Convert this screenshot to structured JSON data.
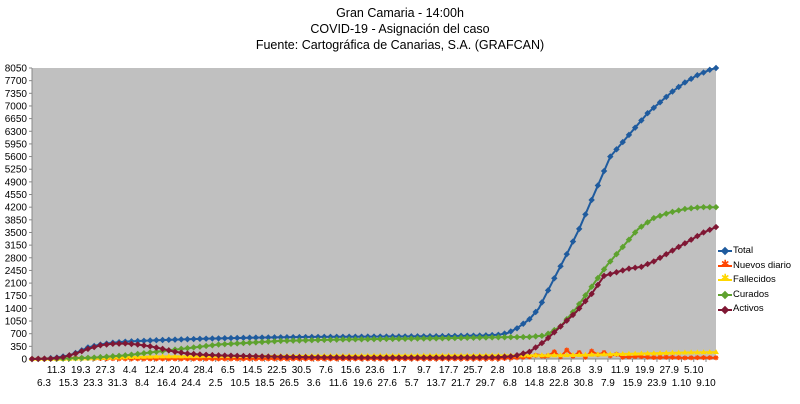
{
  "chart_data": {
    "type": "line",
    "title": "Gran Camaria - 14:00h",
    "subtitle_1": "COVID-19 - Asignación del caso",
    "subtitle_2": "Fuente: Cartográfica de Canarias, S.A. (GRAFCAN)",
    "xlabel": "",
    "ylabel": "",
    "ylim": [
      0,
      8050
    ],
    "y_ticks": [
      0,
      350,
      700,
      1050,
      1400,
      1750,
      2100,
      2450,
      2800,
      3150,
      3500,
      3850,
      4200,
      4550,
      4900,
      5250,
      5600,
      5950,
      6300,
      6650,
      7000,
      7350,
      7700,
      8050
    ],
    "x_labels_top": [
      "11.3",
      "19.3",
      "27.3",
      "4.4",
      "12.4",
      "20.4",
      "28.4",
      "6.5",
      "14.5",
      "22.5",
      "30.5",
      "7.6",
      "15.6",
      "23.6",
      "1.7",
      "9.7",
      "17.7",
      "25.7",
      "2.8",
      "10.8",
      "18.8",
      "26.8",
      "3.9",
      "11.9",
      "19.9",
      "27.9",
      "5.10"
    ],
    "x_labels_bottom": [
      "6.3",
      "15.3",
      "23.3",
      "31.3",
      "8.4",
      "16.4",
      "24.4",
      "2.5",
      "10.5",
      "18.5",
      "26.5",
      "3.6",
      "11.6",
      "19.6",
      "27.6",
      "5.7",
      "13.7",
      "21.7",
      "29.7",
      "6.8",
      "14.8",
      "22.8",
      "30.8",
      "7.9",
      "15.9",
      "23.9",
      "1.10",
      "9.10"
    ],
    "plot_background": "#c0c0c0",
    "grid": false,
    "legend_position": "right",
    "x_day_range": [
      0,
      220
    ],
    "series": [
      {
        "name": "Total",
        "color": "#1f5b9e",
        "marker": "diamond",
        "points": [
          [
            0,
            0
          ],
          [
            4,
            10
          ],
          [
            8,
            40
          ],
          [
            12,
            100
          ],
          [
            15,
            200
          ],
          [
            18,
            320
          ],
          [
            22,
            400
          ],
          [
            26,
            450
          ],
          [
            30,
            480
          ],
          [
            40,
            520
          ],
          [
            55,
            560
          ],
          [
            70,
            590
          ],
          [
            90,
            610
          ],
          [
            110,
            620
          ],
          [
            130,
            630
          ],
          [
            145,
            650
          ],
          [
            150,
            670
          ],
          [
            153,
            720
          ],
          [
            156,
            850
          ],
          [
            160,
            1100
          ],
          [
            163,
            1400
          ],
          [
            166,
            1900
          ],
          [
            169,
            2400
          ],
          [
            172,
            2900
          ],
          [
            176,
            3600
          ],
          [
            180,
            4400
          ],
          [
            183,
            5000
          ],
          [
            186,
            5600
          ],
          [
            190,
            6000
          ],
          [
            194,
            6400
          ],
          [
            198,
            6800
          ],
          [
            202,
            7100
          ],
          [
            206,
            7400
          ],
          [
            210,
            7650
          ],
          [
            214,
            7850
          ],
          [
            218,
            8000
          ],
          [
            220,
            8050
          ]
        ]
      },
      {
        "name": "Nuevos diario",
        "color": "#ff4500",
        "marker": "star",
        "points": [
          [
            0,
            0
          ],
          [
            10,
            10
          ],
          [
            14,
            30
          ],
          [
            20,
            15
          ],
          [
            30,
            5
          ],
          [
            60,
            3
          ],
          [
            100,
            2
          ],
          [
            150,
            5
          ],
          [
            155,
            30
          ],
          [
            160,
            60
          ],
          [
            163,
            120
          ],
          [
            165,
            40
          ],
          [
            168,
            200
          ],
          [
            170,
            60
          ],
          [
            172,
            250
          ],
          [
            174,
            80
          ],
          [
            176,
            180
          ],
          [
            178,
            50
          ],
          [
            180,
            220
          ],
          [
            182,
            120
          ],
          [
            184,
            180
          ],
          [
            186,
            90
          ],
          [
            188,
            130
          ],
          [
            190,
            50
          ],
          [
            195,
            70
          ],
          [
            200,
            40
          ],
          [
            205,
            50
          ],
          [
            210,
            30
          ],
          [
            215,
            40
          ],
          [
            220,
            35
          ]
        ]
      },
      {
        "name": "Fallecidos",
        "color": "#ffd700",
        "marker": "triangle",
        "points": [
          [
            0,
            0
          ],
          [
            10,
            5
          ],
          [
            20,
            20
          ],
          [
            30,
            50
          ],
          [
            40,
            70
          ],
          [
            60,
            80
          ],
          [
            100,
            90
          ],
          [
            150,
            100
          ],
          [
            170,
            105
          ],
          [
            180,
            120
          ],
          [
            190,
            140
          ],
          [
            200,
            160
          ],
          [
            210,
            180
          ],
          [
            220,
            190
          ]
        ]
      },
      {
        "name": "Curados",
        "color": "#5ea22e",
        "marker": "diamond",
        "points": [
          [
            0,
            0
          ],
          [
            10,
            10
          ],
          [
            20,
            40
          ],
          [
            30,
            100
          ],
          [
            40,
            200
          ],
          [
            50,
            300
          ],
          [
            60,
            400
          ],
          [
            70,
            450
          ],
          [
            80,
            500
          ],
          [
            100,
            540
          ],
          [
            130,
            570
          ],
          [
            150,
            600
          ],
          [
            160,
            610
          ],
          [
            165,
            650
          ],
          [
            170,
            900
          ],
          [
            175,
            1400
          ],
          [
            180,
            2000
          ],
          [
            185,
            2600
          ],
          [
            190,
            3100
          ],
          [
            195,
            3600
          ],
          [
            200,
            3900
          ],
          [
            205,
            4050
          ],
          [
            210,
            4150
          ],
          [
            215,
            4200
          ],
          [
            220,
            4200
          ]
        ]
      },
      {
        "name": "Activos",
        "color": "#7f1734",
        "marker": "diamond",
        "points": [
          [
            0,
            0
          ],
          [
            6,
            10
          ],
          [
            10,
            50
          ],
          [
            14,
            150
          ],
          [
            18,
            280
          ],
          [
            22,
            380
          ],
          [
            26,
            420
          ],
          [
            30,
            430
          ],
          [
            34,
            400
          ],
          [
            38,
            350
          ],
          [
            42,
            280
          ],
          [
            46,
            200
          ],
          [
            50,
            150
          ],
          [
            55,
            120
          ],
          [
            60,
            100
          ],
          [
            70,
            80
          ],
          [
            80,
            60
          ],
          [
            90,
            50
          ],
          [
            110,
            40
          ],
          [
            130,
            40
          ],
          [
            150,
            50
          ],
          [
            155,
            80
          ],
          [
            160,
            200
          ],
          [
            165,
            500
          ],
          [
            170,
            900
          ],
          [
            175,
            1300
          ],
          [
            180,
            1800
          ],
          [
            184,
            2300
          ],
          [
            188,
            2400
          ],
          [
            192,
            2500
          ],
          [
            196,
            2550
          ],
          [
            200,
            2700
          ],
          [
            204,
            2900
          ],
          [
            208,
            3100
          ],
          [
            212,
            3300
          ],
          [
            216,
            3500
          ],
          [
            220,
            3650
          ]
        ]
      }
    ]
  }
}
